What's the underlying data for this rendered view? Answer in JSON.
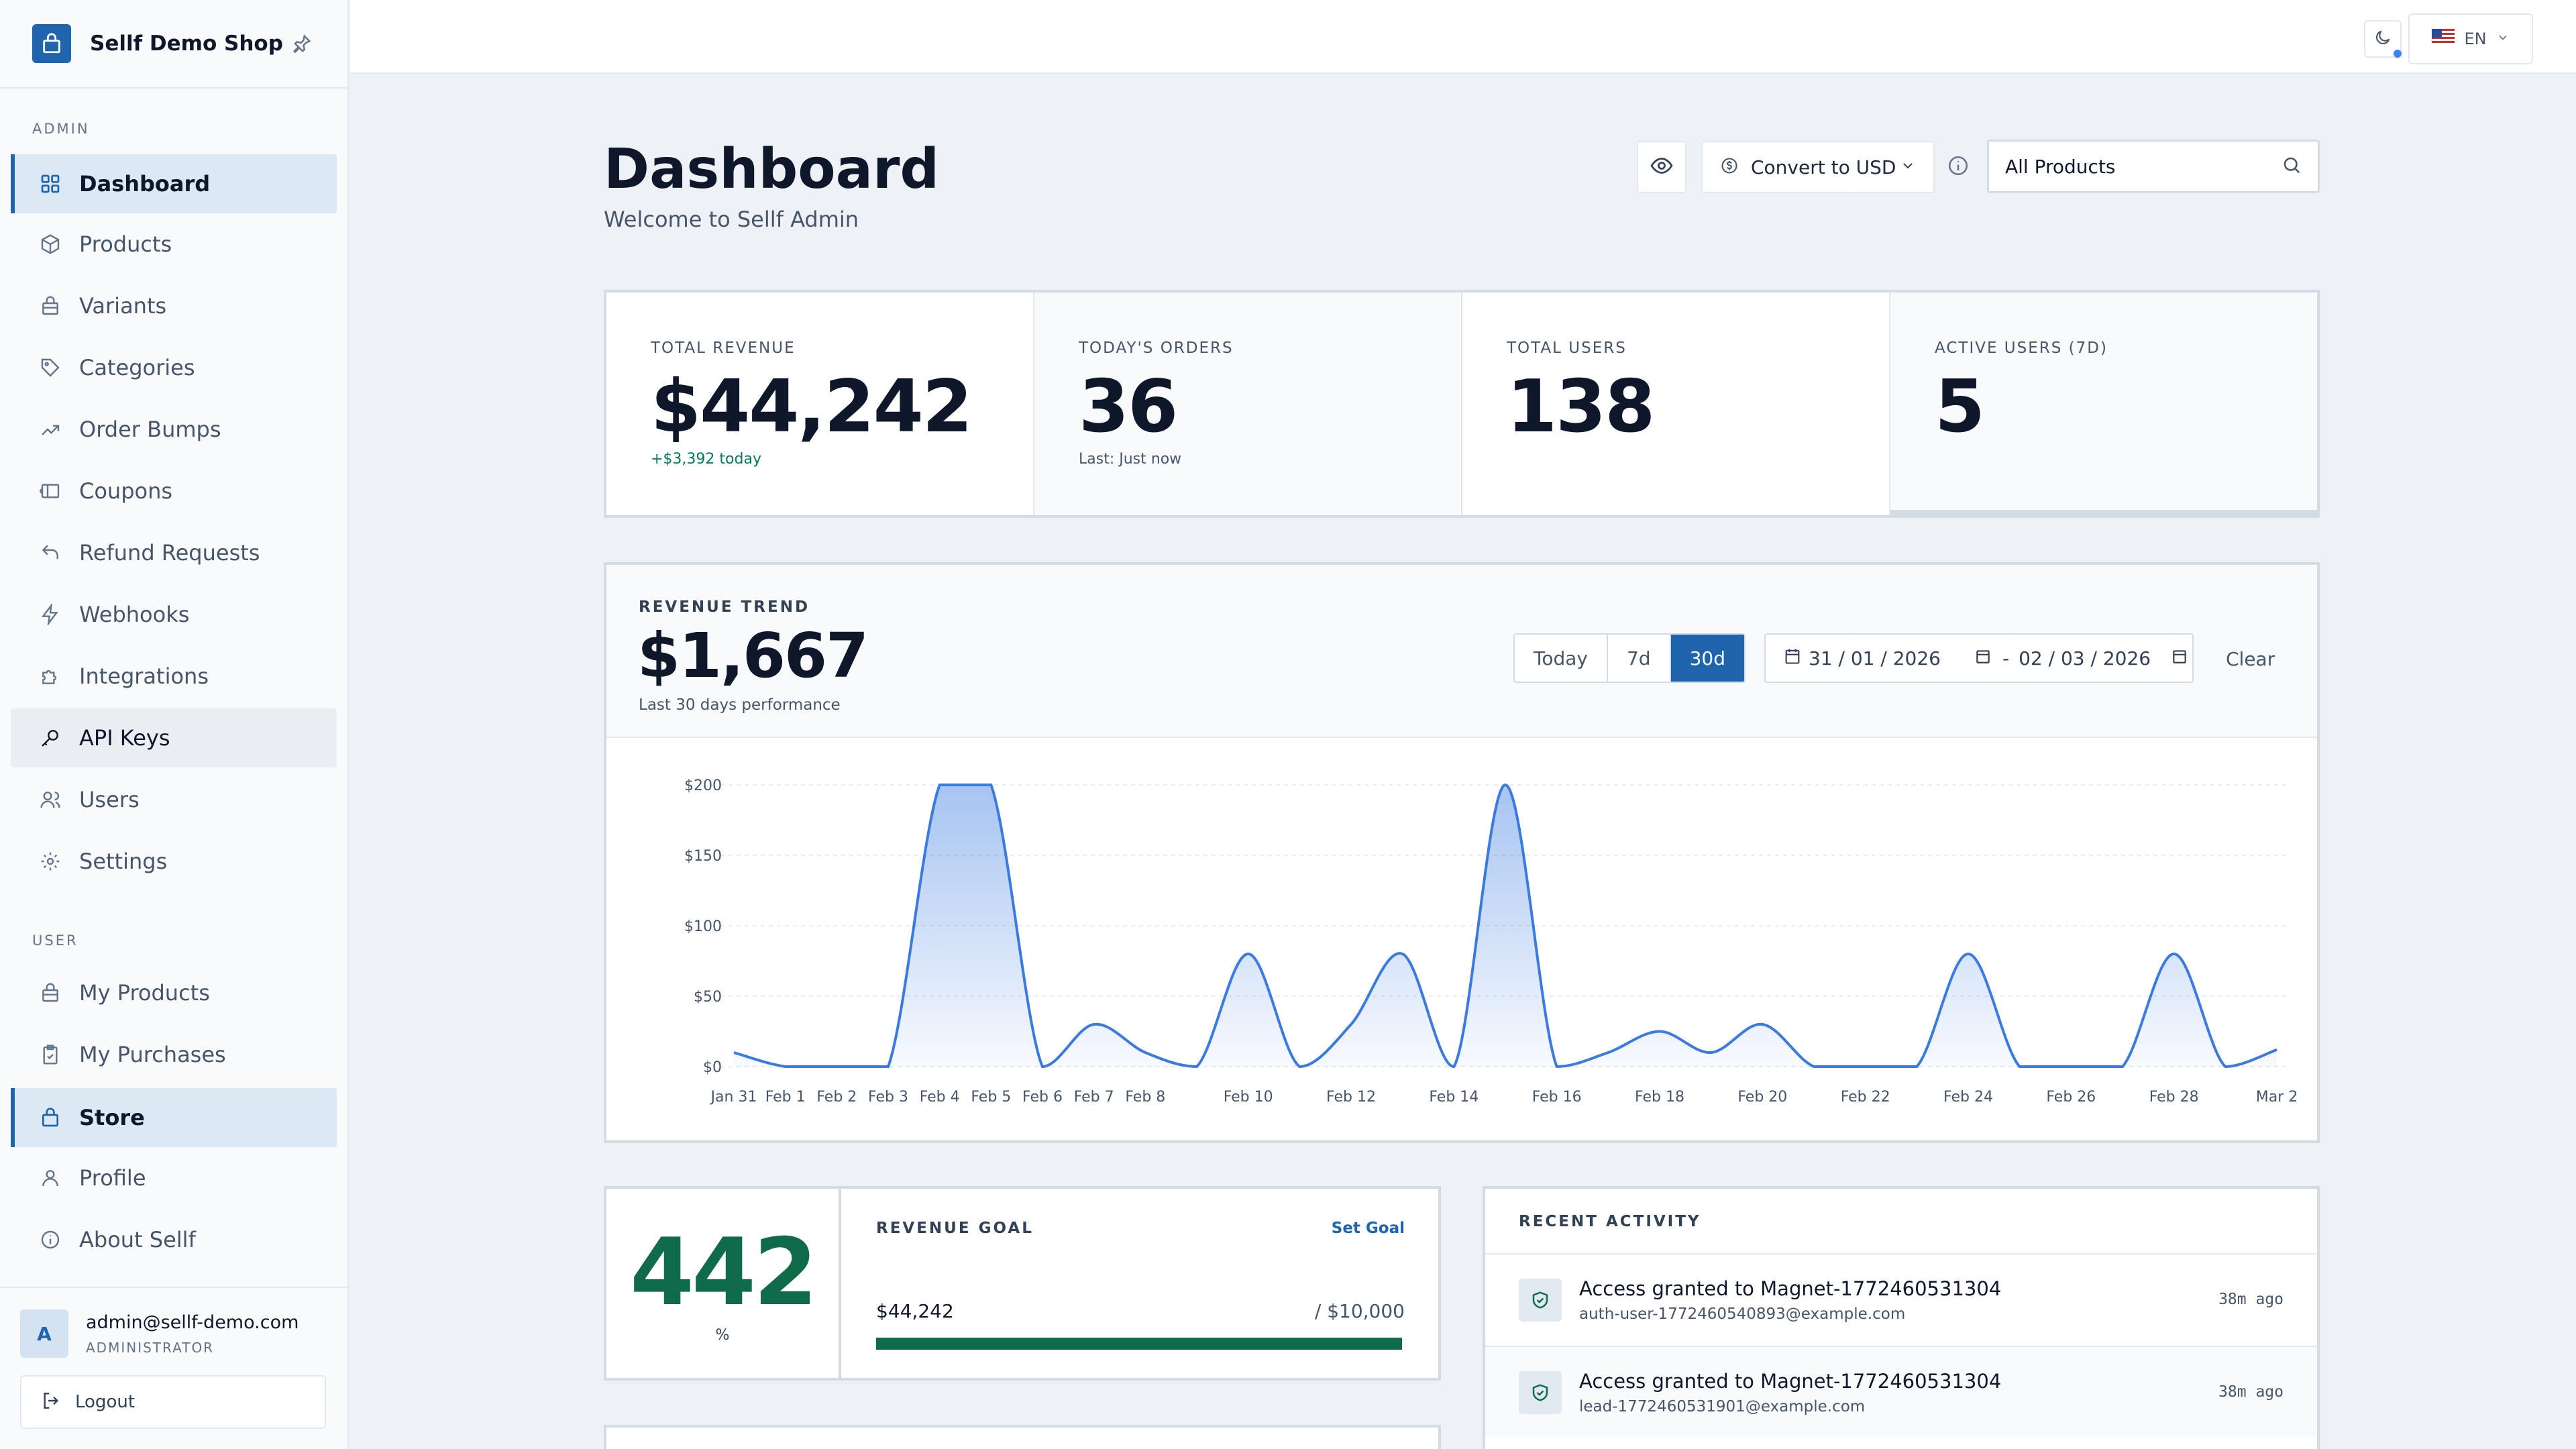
{
  "sidebar": {
    "brand": "Sellf Demo Shop",
    "sections": {
      "admin": "ADMIN",
      "user": "USER"
    },
    "admin_items": [
      {
        "label": "Dashboard",
        "icon": "grid-icon"
      },
      {
        "label": "Products",
        "icon": "box-icon"
      },
      {
        "label": "Variants",
        "icon": "layers-icon"
      },
      {
        "label": "Categories",
        "icon": "tag-icon"
      },
      {
        "label": "Order Bumps",
        "icon": "trending-up-icon"
      },
      {
        "label": "Coupons",
        "icon": "ticket-icon"
      },
      {
        "label": "Refund Requests",
        "icon": "undo-icon"
      },
      {
        "label": "Webhooks",
        "icon": "bolt-icon"
      },
      {
        "label": "Integrations",
        "icon": "puzzle-icon"
      },
      {
        "label": "API Keys",
        "icon": "key-icon"
      },
      {
        "label": "Users",
        "icon": "users-icon"
      },
      {
        "label": "Settings",
        "icon": "gear-icon"
      }
    ],
    "user_items": [
      {
        "label": "My Products",
        "icon": "package-icon"
      },
      {
        "label": "My Purchases",
        "icon": "clipboard-icon"
      },
      {
        "label": "Store",
        "icon": "shopping-bag-icon"
      },
      {
        "label": "Profile",
        "icon": "user-icon"
      },
      {
        "label": "About Sellf",
        "icon": "info-icon"
      }
    ],
    "user": {
      "initial": "A",
      "email": "admin@sellf-demo.com",
      "role": "ADMINISTRATOR"
    },
    "logout": "Logout"
  },
  "topbar": {
    "lang": "EN"
  },
  "header": {
    "title": "Dashboard",
    "subtitle": "Welcome to Sellf Admin",
    "convert": "Convert to USD",
    "product_filter": "All Products"
  },
  "stats": [
    {
      "label": "TOTAL REVENUE",
      "value": "$44,242",
      "sub": "+$3,392 today"
    },
    {
      "label": "TODAY'S ORDERS",
      "value": "36",
      "sub": "Last: Just now"
    },
    {
      "label": "TOTAL USERS",
      "value": "138",
      "sub": ""
    },
    {
      "label": "ACTIVE USERS (7D)",
      "value": "5",
      "sub": ""
    }
  ],
  "trend": {
    "label": "REVENUE TREND",
    "value": "$1,667",
    "sub": "Last 30 days performance",
    "ranges": [
      "Today",
      "7d",
      "30d"
    ],
    "active_range": "30d",
    "date_from": "31 / 01 / 2026",
    "date_sep": "-",
    "date_to": "02 / 03 / 2026",
    "clear": "Clear"
  },
  "chart_data": {
    "type": "area",
    "x": [
      "Jan 31",
      "Feb 1",
      "Feb 2",
      "Feb 3",
      "Feb 4",
      "Feb 5",
      "Feb 6",
      "Feb 7",
      "Feb 8",
      "Feb 9",
      "Feb 10",
      "Feb 11",
      "Feb 12",
      "Feb 13",
      "Feb 14",
      "Feb 15",
      "Feb 16",
      "Feb 17",
      "Feb 18",
      "Feb 19",
      "Feb 20",
      "Feb 21",
      "Feb 22",
      "Feb 23",
      "Feb 24",
      "Feb 25",
      "Feb 26",
      "Feb 27",
      "Feb 28",
      "Mar 1",
      "Mar 2"
    ],
    "tick_labels": [
      "Jan 31",
      "Feb 1",
      "Feb 2",
      "Feb 3",
      "Feb 4",
      "Feb 5",
      "Feb 6",
      "Feb 7",
      "Feb 8",
      "Feb 10",
      "Feb 12",
      "Feb 14",
      "Feb 16",
      "Feb 18",
      "Feb 20",
      "Feb 22",
      "Feb 24",
      "Feb 26",
      "Feb 28",
      "Mar 2"
    ],
    "values": [
      10,
      0,
      0,
      0,
      200,
      200,
      0,
      30,
      10,
      0,
      80,
      0,
      30,
      80,
      0,
      200,
      0,
      10,
      25,
      10,
      30,
      0,
      0,
      0,
      80,
      0,
      0,
      0,
      80,
      0,
      12
    ],
    "yticks": [
      "$0",
      "$50",
      "$100",
      "$150",
      "$200"
    ],
    "ylim": [
      0,
      200
    ],
    "color": "#3b7be0"
  },
  "goal": {
    "percent": "442",
    "percent_unit": "%",
    "label": "REVENUE GOAL",
    "set_goal": "Set Goal",
    "current": "$44,242",
    "target": "/ $10,000",
    "progress": 1.0,
    "color": "#0f6b4a"
  },
  "activity": {
    "title": "RECENT ACTIVITY",
    "items": [
      {
        "title": "Access granted to Magnet-1772460531304",
        "detail": "auth-user-1772460540893@example.com",
        "time": "38m ago"
      },
      {
        "title": "Access granted to Magnet-1772460531304",
        "detail": "lead-1772460531901@example.com",
        "time": "38m ago"
      }
    ]
  }
}
